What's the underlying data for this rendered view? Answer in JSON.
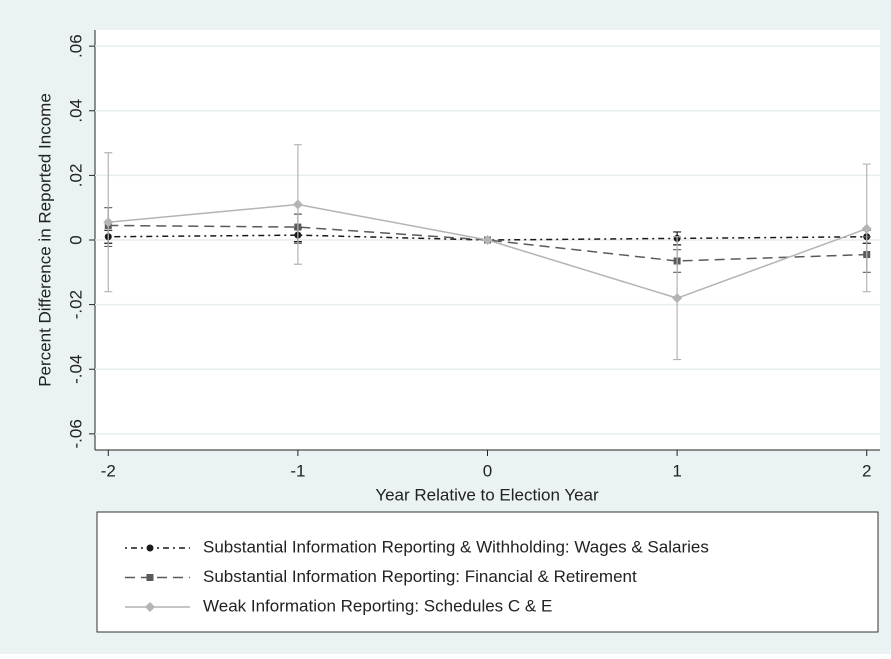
{
  "chart_data": {
    "type": "line",
    "x_label": "Year Relative to Election Year",
    "y_label": "Percent Difference in Reported Income",
    "x": [
      -2,
      -1,
      0,
      1,
      2
    ],
    "xlim": [
      -2.07,
      2.07
    ],
    "xticks": [
      -2,
      -1,
      0,
      1,
      2
    ],
    "ylim": [
      -0.065,
      0.065
    ],
    "yticks": [
      {
        "value": -0.06,
        "label": "-.06"
      },
      {
        "value": -0.04,
        "label": "-.04"
      },
      {
        "value": -0.02,
        "label": "-.02"
      },
      0,
      {
        "value": 0.02,
        "label": ".02"
      },
      {
        "value": 0.04,
        "label": ".04"
      },
      {
        "value": 0.06,
        "label": ".06"
      }
    ],
    "grid": true,
    "series": [
      {
        "name": "Substantial Information Reporting & Withholding: Wages & Salaries",
        "color": "#1a1a1a",
        "line_style": "dashdot",
        "marker": "circle",
        "values": [
          0.001,
          0.0015,
          0,
          0.0005,
          0.001
        ],
        "lower": [
          -0.001,
          -0.0005,
          0,
          -0.0015,
          -0.001
        ],
        "upper": [
          0.003,
          0.0035,
          0,
          0.0025,
          0.003
        ]
      },
      {
        "name": "Substantial Information Reporting: Financial & Retirement",
        "color": "#5a5a5a",
        "line_style": "dashed",
        "marker": "square",
        "values": [
          0.0045,
          0.004,
          0,
          -0.0065,
          -0.0045
        ],
        "lower": [
          -0.002,
          -0.001,
          0,
          -0.01,
          -0.01
        ],
        "upper": [
          0.01,
          0.008,
          0,
          -0.003,
          0.001
        ]
      },
      {
        "name": "Weak Information Reporting: Schedules C & E",
        "color": "#b4b4b4",
        "line_style": "solid",
        "marker": "diamond",
        "values": [
          0.0055,
          0.011,
          0,
          -0.018,
          0.0035
        ],
        "lower": [
          -0.016,
          -0.0075,
          0,
          -0.037,
          -0.016
        ],
        "upper": [
          0.027,
          0.0295,
          0,
          0.001,
          0.0235
        ]
      }
    ]
  }
}
